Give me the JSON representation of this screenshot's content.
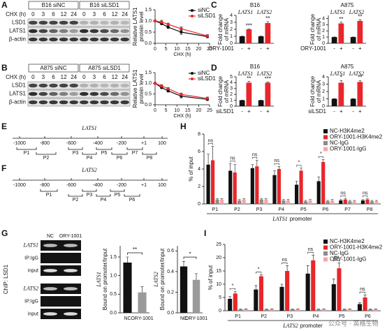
{
  "panel_labels": [
    "A",
    "B",
    "C",
    "D",
    "E",
    "F",
    "G",
    "H",
    "I"
  ],
  "blots": [
    {
      "groups": [
        "B16 siNC",
        "B16 siLSD1"
      ],
      "time_label": "CHX (h)",
      "times": [
        0,
        3,
        6,
        12,
        24,
        0,
        3,
        6,
        12,
        24
      ],
      "rows": [
        "LSD1",
        "LATS1",
        "β-actin"
      ]
    },
    {
      "groups": [
        "A875 siNC",
        "A875 siLSD1"
      ],
      "time_label": "CHX (h)",
      "times": [
        0,
        3,
        6,
        12,
        24,
        0,
        3,
        6,
        12,
        24
      ],
      "rows": [
        "LSD1",
        "LATS1",
        "β-actin"
      ]
    }
  ],
  "promoters": [
    {
      "gene": "LATS1",
      "positions": [
        "-1000",
        "-800",
        "-600",
        "-400",
        "-200",
        "+1",
        "100"
      ],
      "primers": [
        "P1",
        "P2",
        "P3",
        "P4",
        "P5",
        "P6",
        "P7",
        "P8"
      ]
    },
    {
      "gene": "LATS2",
      "positions": [
        "-1000",
        "-800",
        "-600",
        "-400",
        "-200",
        "+1",
        "100"
      ],
      "primers": [
        "P1",
        "P2",
        "P3",
        "P4",
        "P5",
        "P6"
      ]
    }
  ],
  "gel": {
    "side_label": "ChIP: LSD1",
    "columns": [
      "NC",
      "ORY-1001"
    ],
    "genes": [
      "LATS1",
      "LATS2"
    ],
    "rows": [
      "IP:IgG",
      "input"
    ]
  },
  "chart_data": [
    {
      "type": "line",
      "ylabel": [
        "Relative LATS1",
        "protein level"
      ],
      "xlabel": "CHX (h)",
      "x": [
        0,
        3,
        6,
        12,
        24
      ],
      "xlim": [
        0,
        25
      ],
      "xticks": [
        0,
        5,
        10,
        15,
        20,
        25
      ],
      "ylim": [
        0,
        1.5
      ],
      "yticks": [
        {
          "value": 0,
          "label": "0.0"
        },
        {
          "value": 0.5,
          "label": "0.5"
        },
        {
          "value": 1,
          "label": "1.0"
        },
        {
          "value": 1.5,
          "label": "1.5"
        }
      ],
      "legend": "upper right",
      "series": [
        {
          "name": "siNC",
          "color": "#111111",
          "values": [
            1,
            0.88,
            0.72,
            0.5,
            0.3
          ],
          "errors": [
            0,
            0.05,
            0.06,
            0.1,
            0.05
          ]
        },
        {
          "name": "siLSD1",
          "color": "#e8262b",
          "values": [
            1,
            0.95,
            0.85,
            0.65,
            0.33
          ],
          "errors": [
            0,
            0.08,
            0.05,
            0.08,
            0.06
          ]
        }
      ]
    },
    {
      "type": "bar",
      "title": "B16",
      "ylabel": [
        "Fold change",
        "of mRNA"
      ],
      "categories": [
        "LATS1",
        "LATS2"
      ],
      "treatment": "ORY-1001",
      "signs": [
        "-",
        "+"
      ],
      "ylim": [
        0,
        4
      ],
      "yticks": [
        0,
        1,
        2,
        3,
        4
      ],
      "annotations": [
        "***",
        "**"
      ],
      "series": [
        {
          "color": "#111111",
          "values": [
            1,
            1
          ],
          "errors": [
            0.02,
            0.02
          ]
        },
        {
          "color": "#e8262b",
          "values": [
            2,
            2.9
          ],
          "errors": [
            0.05,
            0.2
          ]
        }
      ]
    },
    {
      "type": "bar",
      "title": "A875",
      "ylabel": [
        "Fold change",
        "of mRNA"
      ],
      "categories": [
        "LATS1",
        "LATS2"
      ],
      "treatment": "ORY-1001",
      "signs": [
        "-",
        "+"
      ],
      "ylim": [
        0,
        4.5
      ],
      "yticks": [
        0,
        1,
        2,
        3,
        4
      ],
      "annotations": [
        "**",
        "**"
      ],
      "series": [
        {
          "color": "#111111",
          "values": [
            1,
            1
          ],
          "errors": [
            0.02,
            0.02
          ]
        },
        {
          "color": "#e8262b",
          "values": [
            3.2,
            3.6
          ],
          "errors": [
            0.2,
            0.2
          ]
        }
      ]
    },
    {
      "type": "line",
      "ylabel": [
        "Relative LATS1",
        "protein level"
      ],
      "xlabel": "CHX (h)",
      "x": [
        0,
        3,
        6,
        12,
        24
      ],
      "xlim": [
        0,
        25
      ],
      "xticks": [
        0,
        5,
        10,
        15,
        20,
        25
      ],
      "ylim": [
        0,
        1.5
      ],
      "yticks": [
        {
          "value": 0,
          "label": "0.0"
        },
        {
          "value": 0.5,
          "label": "0.5"
        },
        {
          "value": 1,
          "label": "1.0"
        },
        {
          "value": 1.5,
          "label": "1.5"
        }
      ],
      "legend": "upper right",
      "series": [
        {
          "name": "siNC",
          "color": "#111111",
          "values": [
            1,
            0.8,
            0.65,
            0.4,
            0.25
          ],
          "errors": [
            0,
            0.05,
            0.06,
            0.08,
            0.05
          ]
        },
        {
          "name": "siLSD1",
          "color": "#e8262b",
          "values": [
            1,
            0.88,
            0.75,
            0.48,
            0.3
          ],
          "errors": [
            0,
            0.06,
            0.05,
            0.07,
            0.06
          ]
        }
      ]
    },
    {
      "type": "bar",
      "title": "B16",
      "ylabel": [
        "Fold change",
        "of mRNA"
      ],
      "categories": [
        "LATS1",
        "LATS2"
      ],
      "treatment": "siLSD1",
      "signs": [
        "-",
        "+"
      ],
      "ylim": [
        0,
        5
      ],
      "yticks": [
        0,
        1,
        2,
        3,
        4,
        5
      ],
      "annotations": [
        "**",
        "***"
      ],
      "series": [
        {
          "color": "#111111",
          "values": [
            1,
            1
          ],
          "errors": [
            0.02,
            0.02
          ]
        },
        {
          "color": "#e8262b",
          "values": [
            4,
            4
          ],
          "errors": [
            0.2,
            0.1
          ]
        }
      ]
    },
    {
      "type": "bar",
      "title": "A875",
      "ylabel": [
        "Fold change",
        "of mRNA"
      ],
      "categories": [
        "LATS1",
        "LATS2"
      ],
      "treatment": "siLSD1",
      "signs": [
        "-",
        "+"
      ],
      "ylim": [
        0,
        4
      ],
      "yticks": [
        0,
        1,
        2,
        3,
        4
      ],
      "annotations": [
        "*",
        "**"
      ],
      "series": [
        {
          "color": "#111111",
          "values": [
            1,
            1
          ],
          "errors": [
            0.02,
            0.02
          ]
        },
        {
          "color": "#e8262b",
          "values": [
            3.2,
            3.3
          ],
          "errors": [
            0.3,
            0.2
          ]
        }
      ]
    },
    {
      "type": "bar",
      "ylabel": [
        "LATS1",
        "Bound on promoter/Input"
      ],
      "categories": [
        "NC",
        "ORY-1001"
      ],
      "ylim": [
        0,
        1.8
      ],
      "yticks": [
        {
          "value": 0,
          "label": "0.0"
        },
        {
          "value": 0.5,
          "label": "0.5"
        },
        {
          "value": 1,
          "label": "1.0"
        },
        {
          "value": 1.5,
          "label": "1.5"
        }
      ],
      "significance": "**",
      "series": [
        {
          "colors": [
            "#111111",
            "#9a9a9a"
          ],
          "values": [
            1.35,
            0.55
          ],
          "errors": [
            0.15,
            0.15
          ]
        }
      ]
    },
    {
      "type": "bar",
      "ylabel": [
        "LATS2",
        "Bound on promoter/Input"
      ],
      "categories": [
        "NC",
        "ORY-1001"
      ],
      "ylim": [
        0,
        0.65
      ],
      "yticks": [
        {
          "value": 0,
          "label": "0.0"
        },
        {
          "value": 0.2,
          "label": "0.2"
        },
        {
          "value": 0.4,
          "label": "0.4"
        },
        {
          "value": 0.6,
          "label": "0.6"
        }
      ],
      "significance": "*",
      "series": [
        {
          "colors": [
            "#111111",
            "#9a9a9a"
          ],
          "values": [
            0.45,
            0.32
          ],
          "errors": [
            0.05,
            0.06
          ]
        }
      ]
    },
    {
      "type": "bar",
      "ylabel": [
        "% of input"
      ],
      "xlabel_gene": "LATS1",
      "xlabel": "promoter",
      "categories": [
        "P1",
        "P2",
        "P3",
        "P4",
        "P5",
        "P6",
        "P7",
        "P8"
      ],
      "ylim": [
        0,
        8
      ],
      "yticks": [
        0,
        2,
        4,
        6,
        8
      ],
      "legend": "upper right",
      "annotations": [
        "ns",
        "ns",
        "ns",
        "ns",
        "*",
        "*",
        "ns",
        "ns"
      ],
      "series": [
        {
          "name": "NC-H3K4me2",
          "color": "#111111",
          "values": [
            4.5,
            3.8,
            4.1,
            3.3,
            2.2,
            2.6,
            0.4,
            0.4
          ],
          "errors": [
            1.2,
            0.8,
            0.4,
            0.5,
            0.4,
            0.5,
            0.1,
            0.1
          ]
        },
        {
          "name": "ORY-1001-H3K4me2",
          "color": "#e8262b",
          "values": [
            5,
            3.6,
            4.3,
            4,
            3.8,
            4.8,
            0.5,
            0.5
          ],
          "errors": [
            1.6,
            0.9,
            0.7,
            0.3,
            0.3,
            0.3,
            0.1,
            0.1
          ]
        },
        {
          "name": "NC-IgG",
          "color": "#8c8c8c",
          "values": [
            0.5,
            0.4,
            0.5,
            0.4,
            0.3,
            0.3,
            0.3,
            0.3
          ],
          "errors": [
            0.1,
            0.1,
            0.1,
            0.1,
            0.1,
            0.1,
            0.1,
            0.1
          ]
        },
        {
          "name": "ORY-1001-IgG",
          "color": "#f4a6a6",
          "values": [
            0.5,
            0.5,
            0.5,
            0.4,
            0.4,
            0.4,
            0.3,
            0.3
          ],
          "errors": [
            0.1,
            0.1,
            0.1,
            0.1,
            0.1,
            0.1,
            0.1,
            0.1
          ]
        }
      ]
    },
    {
      "type": "bar",
      "ylabel": [
        "% of input"
      ],
      "xlabel_gene": "LATS2",
      "xlabel": "promoter",
      "categories": [
        "P1",
        "P2",
        "P3",
        "P4",
        "P5",
        "P6"
      ],
      "ylim": [
        0,
        25
      ],
      "yticks": [
        0,
        5,
        10,
        15,
        20,
        25
      ],
      "legend": "upper right",
      "annotations": [
        "*",
        "*",
        "ns",
        "ns",
        "ns",
        "ns"
      ],
      "series": [
        {
          "name": "NC-H3K4me2",
          "color": "#111111",
          "values": [
            4.5,
            8,
            9,
            14,
            10,
            2.5
          ],
          "errors": [
            0.8,
            1.5,
            1,
            3,
            2,
            0.5
          ]
        },
        {
          "name": "ORY-1001-H3K4me2",
          "color": "#e8262b",
          "values": [
            6.5,
            13,
            15,
            19,
            16,
            5
          ],
          "errors": [
            0.8,
            0.5,
            2,
            2,
            2,
            1
          ]
        },
        {
          "name": "NC-IgG",
          "color": "#8c8c8c",
          "values": [
            0.5,
            0.5,
            0.5,
            0.5,
            0.5,
            0.5
          ],
          "errors": [
            0.1,
            0.1,
            0.1,
            0.1,
            0.1,
            0.1
          ]
        },
        {
          "name": "ORY-1001-IgG",
          "color": "#f4a6a6",
          "values": [
            0.6,
            0.6,
            0.6,
            0.6,
            0.6,
            0.6
          ],
          "errors": [
            0.1,
            0.1,
            0.1,
            0.1,
            0.1,
            0.1
          ]
        }
      ]
    }
  ],
  "watermark": "公众号 · 英格生物"
}
